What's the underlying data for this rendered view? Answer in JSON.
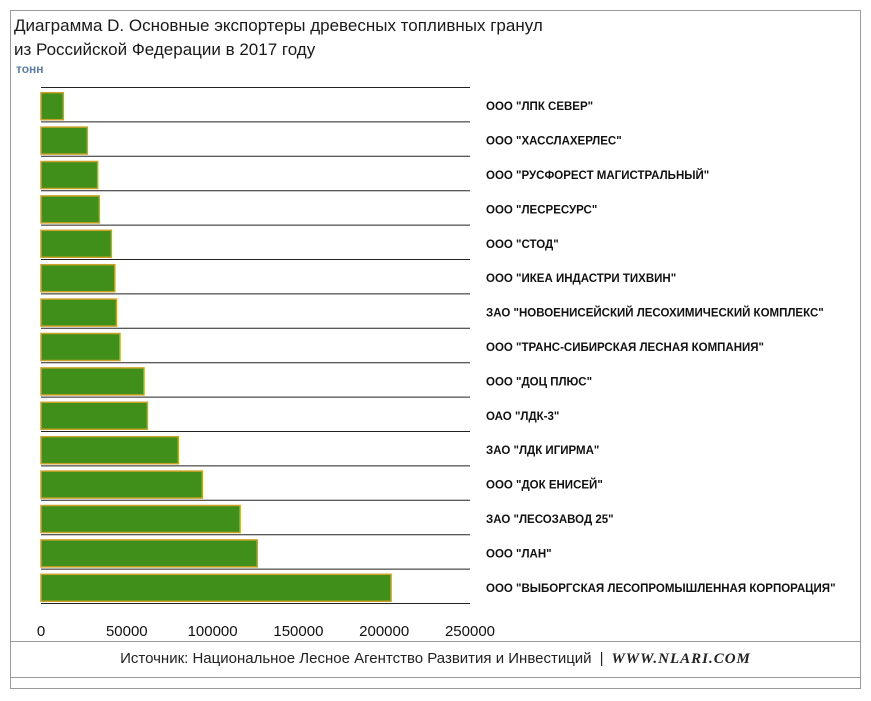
{
  "title_line1": "Диаграмма D.  Основные экспортеры древесных топливных гранул",
  "title_line2": "из Российской Федерации в 2017 году",
  "unit": "тонн",
  "source": {
    "text": "Источник: Национальное Лесное Агентство Развития и Инвестиций",
    "separator": "|",
    "site": "WWW.NLARI.COM"
  },
  "colors": {
    "bar_fill": "#3f8f1a",
    "bar_stroke": "#c9a227",
    "unit": "#5b7fa6"
  },
  "chart_data": {
    "type": "bar",
    "orientation": "horizontal",
    "xlim": [
      0,
      250000
    ],
    "x_ticks": [
      "0",
      "50000",
      "100000",
      "150000",
      "200000",
      "250000"
    ],
    "categories": [
      "ООО \"ЛПК СЕВЕР\"",
      "ООО \"ХАССЛАХЕРЛЕС\"",
      "ООО \"РУСФОРЕСТ МАГИСТРАЛЬНЫЙ\"",
      "ООО \"ЛЕСРЕСУРС\"",
      "ООО \"СТОД\"",
      "ООО \"ИКЕА ИНДАСТРИ ТИХВИН\"",
      "ЗАО \"НОВОЕНИСЕЙСКИЙ ЛЕСОХИМИЧЕСКИЙ КОМПЛЕКС\"",
      "ООО \"ТРАНС-СИБИРСКАЯ ЛЕСНАЯ КОМПАНИЯ\"",
      "ООО \"ДОЦ ПЛЮС\"",
      "ОАО \"ЛДК-3\"",
      "ЗАО \"ЛДК ИГИРМА\"",
      "ООО \"ДОК ЕНИСЕЙ\"",
      "ЗАО \"ЛЕСОЗАВОД 25\"",
      "ООО \"ЛАН\"",
      "ООО \"ВЫБОРГСКАЯ ЛЕСОПРОМЫШЛЕННАЯ КОРПОРАЦИЯ\""
    ],
    "values": [
      13000,
      27000,
      33000,
      34000,
      41000,
      43000,
      44000,
      46000,
      60000,
      62000,
      80000,
      94000,
      116000,
      126000,
      204000
    ]
  }
}
